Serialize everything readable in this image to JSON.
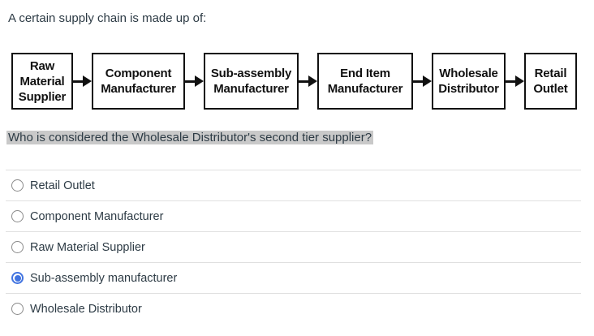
{
  "intro": "A certain supply chain is made up of:",
  "diagram": {
    "nodes": [
      {
        "label": "Raw\nMaterial\nSupplier"
      },
      {
        "label": "Component\nManufacturer"
      },
      {
        "label": "Sub-assembly\nManufacturer"
      },
      {
        "label": "End Item\nManufacturer"
      },
      {
        "label": "Wholesale\nDistributor"
      },
      {
        "label": "Retail\nOutlet"
      }
    ]
  },
  "question": "Who is considered the Wholesale Distributor's second tier supplier?",
  "options": [
    {
      "label": "Retail Outlet",
      "selected": false
    },
    {
      "label": "Component Manufacturer",
      "selected": false
    },
    {
      "label": "Raw Material Supplier",
      "selected": false
    },
    {
      "label": "Sub-assembly manufacturer",
      "selected": true
    },
    {
      "label": "Wholesale Distributor",
      "selected": false
    }
  ],
  "colors": {
    "accent_blue": "#4274e0",
    "highlight_gray": "#c9c9c9",
    "text": "#2d3b45",
    "divider": "#e0e0e0",
    "diagram_border": "#111111"
  }
}
